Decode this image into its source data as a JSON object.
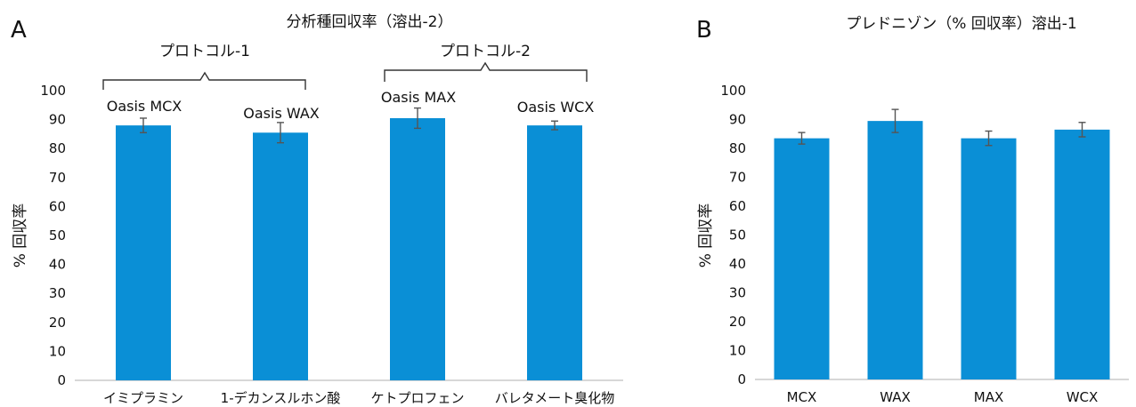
{
  "chart_data": [
    {
      "type": "bar",
      "panel_label": "A",
      "title": "分析種回収率（溶出-2）",
      "ylabel": "% 回収率",
      "xlabel": "",
      "ylim": [
        0,
        100
      ],
      "y_ticks": [
        0,
        10,
        20,
        30,
        40,
        50,
        60,
        70,
        80,
        90,
        100
      ],
      "categories": [
        "イミプラミン",
        "1-デカンスルホン酸",
        "ケトプロフェン",
        "バレタメート臭化物"
      ],
      "values": [
        88,
        85.5,
        90.5,
        88
      ],
      "error": [
        2.5,
        3.5,
        3.5,
        1.5
      ],
      "bar_annotations": [
        "Oasis  MCX",
        "Oasis  WAX",
        "Oasis  MAX",
        "Oasis  WCX"
      ],
      "group_labels": [
        "プロトコル-1",
        "プロトコル-2"
      ],
      "bar_color": "#0a8fd6",
      "error_color": "#555555"
    },
    {
      "type": "bar",
      "panel_label": "B",
      "title": "プレドニゾン（% 回収率）溶出-1",
      "ylabel": "% 回収率",
      "xlabel": "",
      "ylim": [
        0,
        100
      ],
      "y_ticks": [
        0,
        10,
        20,
        30,
        40,
        50,
        60,
        70,
        80,
        90,
        100
      ],
      "categories": [
        "MCX",
        "WAX",
        "MAX",
        "WCX"
      ],
      "values": [
        83.5,
        89.5,
        83.5,
        86.5
      ],
      "error": [
        2,
        4,
        2.5,
        2.5
      ],
      "bar_color": "#0a8fd6",
      "error_color": "#555555"
    }
  ]
}
